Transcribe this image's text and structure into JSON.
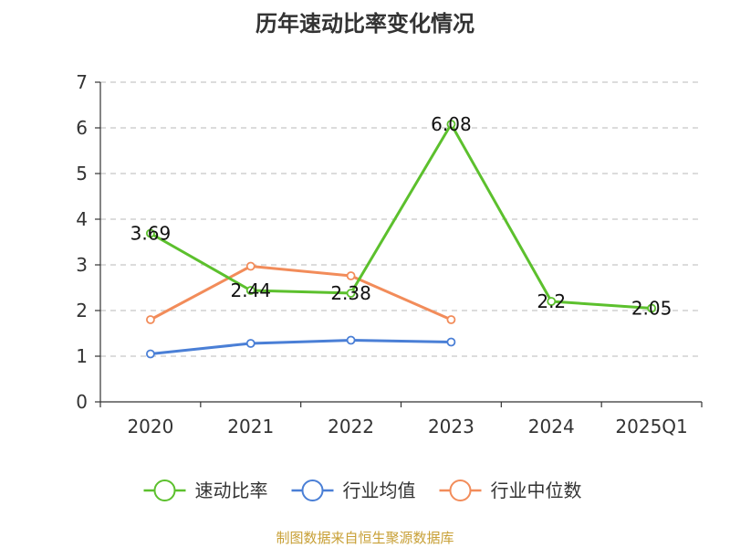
{
  "chart_data": {
    "type": "line",
    "title": "历年速动比率变化情况",
    "categories": [
      "2020",
      "2021",
      "2022",
      "2023",
      "2024",
      "2025Q1"
    ],
    "ylim": [
      0,
      7
    ],
    "yticks": [
      0,
      1,
      2,
      3,
      4,
      5,
      6,
      7
    ],
    "grid": "horizontal-dashed",
    "legend_position": "bottom",
    "series": [
      {
        "name": "速动比率",
        "color": "#5cc02d",
        "values": [
          3.69,
          2.44,
          2.38,
          6.08,
          2.2,
          2.05
        ],
        "labels": [
          "3.69",
          "2.44",
          "2.38",
          "6.08",
          "2.2",
          "2.05"
        ]
      },
      {
        "name": "行业均值",
        "color": "#4a7fd6",
        "values": [
          1.05,
          1.28,
          1.35,
          1.31,
          null,
          null
        ]
      },
      {
        "name": "行业中位数",
        "color": "#f28c5a",
        "values": [
          1.8,
          2.97,
          2.76,
          1.8,
          null,
          null
        ]
      }
    ]
  },
  "footer": {
    "source": "制图数据来自恒生聚源数据库"
  }
}
